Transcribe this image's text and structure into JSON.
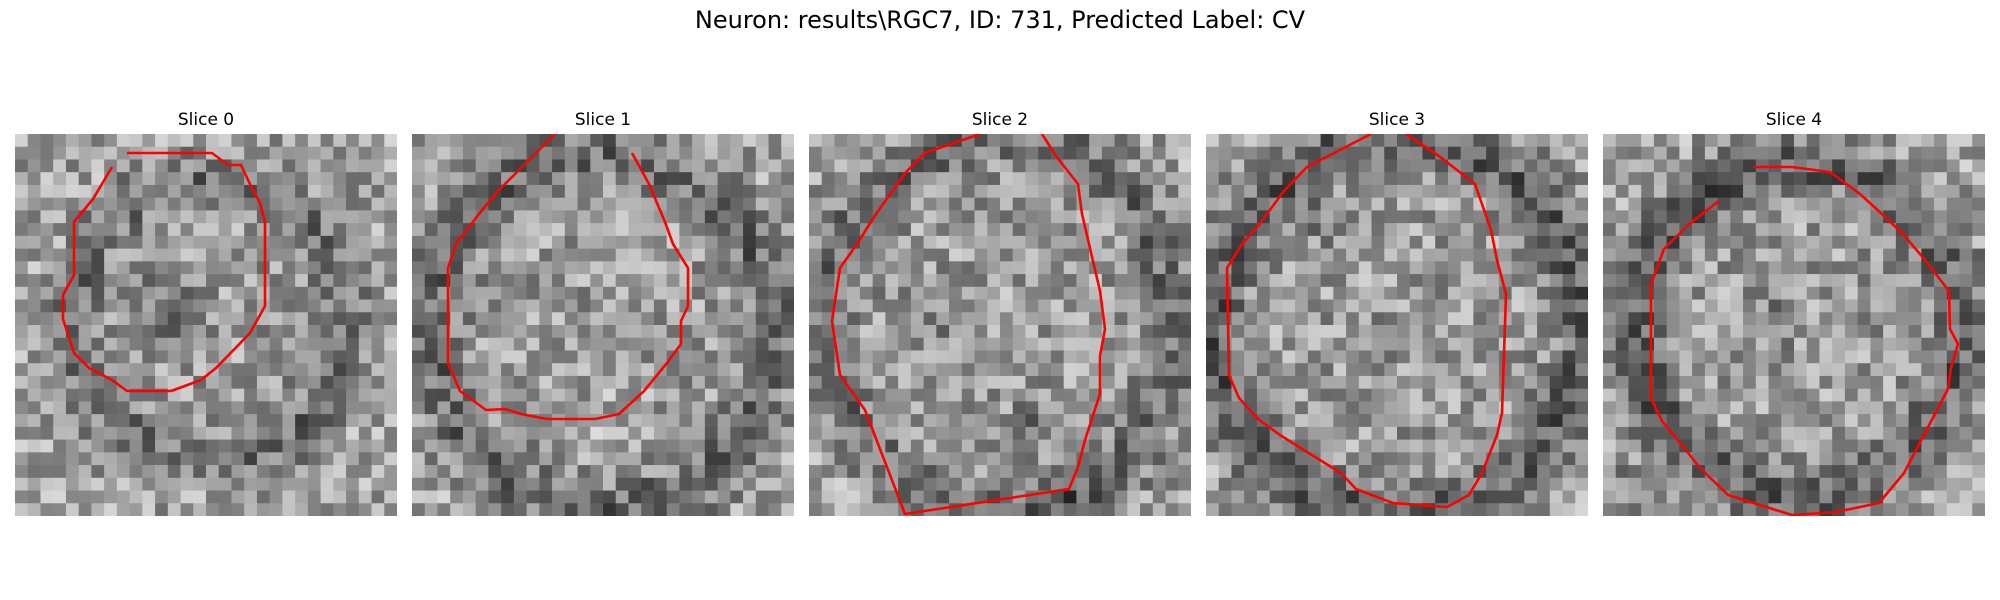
{
  "figure": {
    "title": "Neuron: results\\RGC7, ID: 731, Predicted Label: CV"
  },
  "slices": [
    {
      "title": "Slice 0"
    },
    {
      "title": "Slice 1"
    },
    {
      "title": "Slice 2"
    },
    {
      "title": "Slice 3"
    },
    {
      "title": "Slice 4"
    }
  ],
  "colors": {
    "contour": "#ff0000",
    "colormap": "gray"
  }
}
